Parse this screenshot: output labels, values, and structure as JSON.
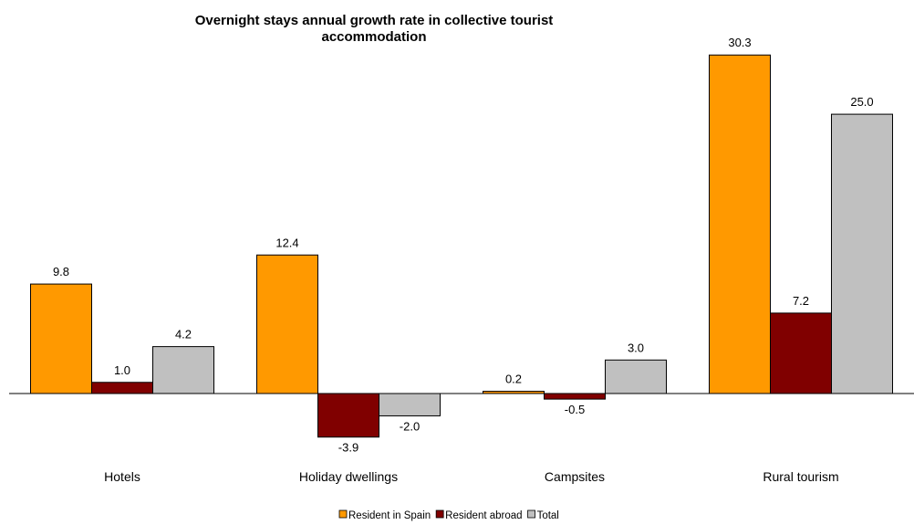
{
  "chart_data": {
    "type": "bar",
    "title_lines": [
      "Overnight stays annual growth rate in collective tourist",
      "accommodation"
    ],
    "categories": [
      "Hotels",
      "Holiday dwellings",
      "Campsites",
      "Rural tourism"
    ],
    "series": [
      {
        "name": "Resident in Spain",
        "color": "#FF9900",
        "values": [
          9.8,
          12.4,
          0.2,
          30.3
        ]
      },
      {
        "name": "Resident abroad",
        "color": "#800000",
        "values": [
          1.0,
          -3.9,
          -0.5,
          7.2
        ]
      },
      {
        "name": "Total",
        "color": "#C0C0C0",
        "values": [
          4.2,
          -2.0,
          3.0,
          25.0
        ]
      }
    ],
    "value_labels": [
      [
        "9.8",
        "12.4",
        "0.2",
        "30.3"
      ],
      [
        "1.0",
        "-3.9",
        "-0.5",
        "7.2"
      ],
      [
        "4.2",
        "-2.0",
        "3.0",
        "25.0"
      ]
    ],
    "ylim": [
      -4.3,
      31.2
    ],
    "grid": false,
    "legend_position": "bottom"
  }
}
